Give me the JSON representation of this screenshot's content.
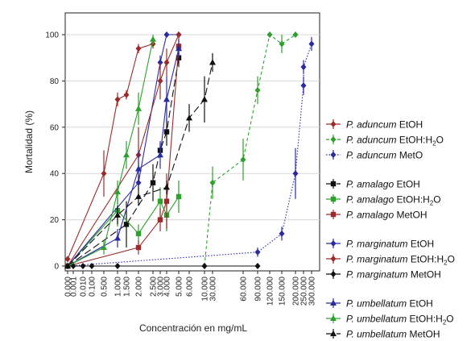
{
  "chart_data": {
    "type": "line",
    "title": "",
    "xlabel": "Concentración en mg/mL",
    "ylabel": "Mortalidad (%)",
    "ylim": [
      0,
      100
    ],
    "y_ticks": [
      "0",
      "20",
      "40",
      "60",
      "80",
      "100"
    ],
    "x_ticks": [
      "0.000",
      "0.001",
      "0.010",
      "0.100",
      "0.500",
      "1.000",
      "1.500",
      "2.000",
      "2.500",
      "3.000",
      "4.000",
      "5.000",
      "6.000",
      "10.000",
      "30.000",
      "60.000",
      "90.000",
      "120.000",
      "150.000",
      "200.000",
      "250.000",
      "300.000"
    ],
    "x_scale": "categorical (irregular spacing)",
    "grid": "horizontal",
    "legend_position": "right",
    "legend_groups": [
      [
        {
          "species": "P. aduncum",
          "solvent": "EtOH",
          "sub": "",
          "color": "#9b2b2b",
          "marker": "diamond",
          "dash": "solid"
        },
        {
          "species": "P. aduncum",
          "solvent": "EtOH:H",
          "sub": "2",
          "solvent_tail": "O",
          "color": "#2ea02e",
          "marker": "diamond",
          "dash": "dashed"
        },
        {
          "species": "P. aduncum",
          "solvent": "MetO",
          "sub": "",
          "color": "#2b2ba0",
          "marker": "diamond",
          "dash": "dotted"
        }
      ],
      [
        {
          "species": "P. amalago",
          "solvent": "EtOH",
          "sub": "",
          "color": "#111111",
          "marker": "square",
          "dash": "longdash"
        },
        {
          "species": "P. amalago",
          "solvent": "EtOH:H",
          "sub": "2",
          "solvent_tail": "O",
          "color": "#2ea02e",
          "marker": "square",
          "dash": "solid"
        },
        {
          "species": "P. amalago",
          "solvent": "MetOH",
          "sub": "",
          "color": "#9b2b2b",
          "marker": "square",
          "dash": "solid"
        }
      ],
      [
        {
          "species": "P. marginatum",
          "solvent": "EtOH",
          "sub": "",
          "color": "#2b2ba0",
          "marker": "diamond",
          "dash": "solid"
        },
        {
          "species": "P. marginatum",
          "solvent": "EtOH:H",
          "sub": "2",
          "solvent_tail": "O",
          "color": "#9b2b2b",
          "marker": "diamond",
          "dash": "solid"
        },
        {
          "species": "P. marginatum",
          "solvent": "MetOH",
          "sub": "",
          "color": "#111111",
          "marker": "diamond",
          "dash": "solid"
        }
      ],
      [
        {
          "species": "P. umbellatum",
          "solvent": "EtOH",
          "sub": "",
          "color": "#2b2ba0",
          "marker": "triangle",
          "dash": "solid"
        },
        {
          "species": "P. umbellatum",
          "solvent": "EtOH:H",
          "sub": "2",
          "solvent_tail": "O",
          "color": "#2ea02e",
          "marker": "triangle",
          "dash": "solid"
        },
        {
          "species": "P. umbellatum",
          "solvent": "MetOH",
          "sub": "",
          "color": "#111111",
          "marker": "triangle",
          "dash": "longdash"
        }
      ]
    ],
    "series": [
      {
        "name": "P. aduncum EtOH",
        "color": "#9b2b2b",
        "marker": "diamond",
        "dash": "solid",
        "points": [
          [
            "0.000",
            3,
            0
          ],
          [
            "0.500",
            40,
            10
          ],
          [
            "1.000",
            72,
            3
          ],
          [
            "1.500",
            74,
            2
          ],
          [
            "2.000",
            94,
            2
          ],
          [
            "2.500",
            96,
            2
          ]
        ]
      },
      {
        "name": "P. aduncum EtOH:H2O",
        "color": "#2ea02e",
        "marker": "diamond",
        "dash": "dashed",
        "points": [
          [
            "10.000",
            0,
            0
          ],
          [
            "30.000",
            36,
            7
          ],
          [
            "60.000",
            46,
            9
          ],
          [
            "90.000",
            76,
            6
          ],
          [
            "120.000",
            100,
            0
          ],
          [
            "150.000",
            96,
            4
          ],
          [
            "200.000",
            100,
            0
          ]
        ]
      },
      {
        "name": "P. aduncum MetO",
        "color": "#2b2ba0",
        "marker": "diamond",
        "dash": "dotted",
        "points": [
          [
            "0.000",
            0,
            0
          ],
          [
            "90.000",
            6,
            2
          ],
          [
            "150.000",
            14,
            3
          ],
          [
            "200.000",
            40,
            11
          ],
          [
            "250.000",
            78,
            4
          ],
          [
            "250.000",
            86,
            3
          ],
          [
            "300.000",
            96,
            3
          ]
        ]
      },
      {
        "name": "P. amalago EtOH",
        "color": "#111111",
        "marker": "square",
        "dash": "longdash",
        "points": [
          [
            "0.000",
            0,
            0
          ],
          [
            "1.500",
            18,
            10
          ],
          [
            "2.500",
            36,
            8
          ],
          [
            "3.000",
            50,
            3
          ],
          [
            "4.000",
            58,
            6
          ],
          [
            "5.000",
            90,
            4
          ]
        ]
      },
      {
        "name": "P. amalago EtOH:H2O",
        "color": "#2ea02e",
        "marker": "square",
        "dash": "solid",
        "points": [
          [
            "0.000",
            0,
            0
          ],
          [
            "1.000",
            24,
            7
          ],
          [
            "2.000",
            14,
            4
          ],
          [
            "3.000",
            28,
            6
          ],
          [
            "4.000",
            22,
            7
          ],
          [
            "5.000",
            30,
            7
          ]
        ]
      },
      {
        "name": "P. amalago MetOH",
        "color": "#9b2b2b",
        "marker": "square",
        "dash": "solid",
        "points": [
          [
            "0.000",
            0,
            0
          ],
          [
            "2.000",
            8,
            3
          ],
          [
            "3.000",
            20,
            5
          ],
          [
            "4.000",
            28,
            12
          ],
          [
            "5.000",
            95,
            4
          ]
        ]
      },
      {
        "name": "P. marginatum EtOH",
        "color": "#2b2ba0",
        "marker": "diamond",
        "dash": "solid",
        "points": [
          [
            "0.000",
            0,
            0
          ],
          [
            "2.000",
            36,
            3
          ],
          [
            "3.000",
            88,
            3
          ],
          [
            "4.000",
            100,
            1
          ],
          [
            "5.000",
            100,
            0
          ]
        ]
      },
      {
        "name": "P. marginatum EtOH:H2O",
        "color": "#9b2b2b",
        "marker": "diamond",
        "dash": "solid",
        "points": [
          [
            "0.000",
            0,
            0
          ],
          [
            "2.000",
            48,
            12
          ],
          [
            "3.000",
            80,
            8
          ],
          [
            "4.000",
            88,
            6
          ],
          [
            "5.000",
            100,
            0
          ]
        ]
      },
      {
        "name": "P. marginatum MetOH",
        "color": "#111111",
        "marker": "diamond",
        "dash": "solid",
        "points": [
          [
            "0.000",
            0,
            0
          ],
          [
            "0.001",
            0,
            0
          ],
          [
            "0.010",
            0,
            0
          ],
          [
            "0.100",
            0,
            0
          ],
          [
            "1.000",
            0,
            0
          ],
          [
            "10.000",
            0,
            0
          ],
          [
            "90.000",
            0,
            0
          ]
        ]
      },
      {
        "name": "P. umbellatum EtOH",
        "color": "#2b2ba0",
        "marker": "triangle",
        "dash": "solid",
        "points": [
          [
            "0.000",
            0,
            0
          ],
          [
            "1.000",
            12,
            4
          ],
          [
            "2.000",
            42,
            8
          ],
          [
            "3.000",
            48,
            6
          ],
          [
            "4.000",
            72,
            10
          ],
          [
            "5.000",
            94,
            4
          ]
        ]
      },
      {
        "name": "P. umbellatum EtOH:H2O",
        "color": "#2ea02e",
        "marker": "triangle",
        "dash": "solid",
        "points": [
          [
            "0.000",
            0,
            0
          ],
          [
            "0.500",
            8,
            3
          ],
          [
            "1.000",
            32,
            5
          ],
          [
            "1.500",
            48,
            6
          ],
          [
            "2.000",
            68,
            7
          ],
          [
            "2.500",
            98,
            2
          ]
        ]
      },
      {
        "name": "P. umbellatum MetOH",
        "color": "#111111",
        "marker": "triangle",
        "dash": "longdash",
        "points": [
          [
            "0.000",
            0,
            0
          ],
          [
            "1.000",
            22,
            4
          ],
          [
            "2.000",
            30,
            4
          ],
          [
            "4.000",
            34,
            3
          ],
          [
            "6.000",
            64,
            6
          ],
          [
            "10.000",
            72,
            10
          ],
          [
            "30.000",
            88,
            4
          ]
        ]
      }
    ]
  }
}
